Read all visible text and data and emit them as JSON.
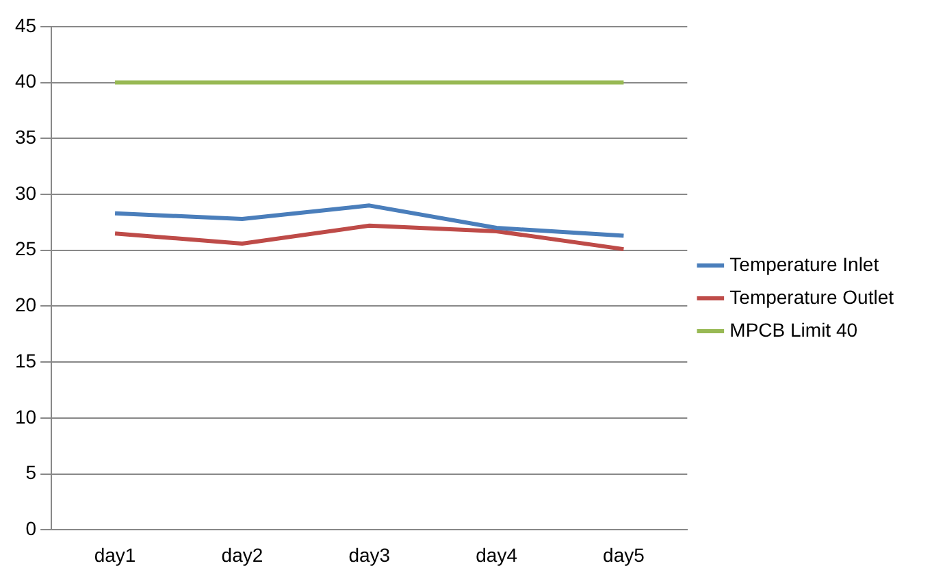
{
  "chart_data": {
    "type": "line",
    "categories": [
      "day1",
      "day2",
      "day3",
      "day4",
      "day5"
    ],
    "series": [
      {
        "name": "Temperature Inlet",
        "color": "#4a7ebb",
        "values": [
          28.3,
          27.8,
          29,
          27,
          26.3
        ]
      },
      {
        "name": "Temperature Outlet",
        "color": "#be4b48",
        "values": [
          26.5,
          25.6,
          27.2,
          26.7,
          25.1
        ]
      },
      {
        "name": "MPCB Limit 40",
        "color": "#98b954",
        "values": [
          40,
          40,
          40,
          40,
          40
        ]
      }
    ],
    "ylim": [
      0,
      45
    ],
    "yticks": [
      0,
      5,
      10,
      15,
      20,
      25,
      30,
      35,
      40,
      45
    ],
    "grid": "y",
    "legend": "right",
    "marker": "none",
    "line_style": "solid"
  }
}
